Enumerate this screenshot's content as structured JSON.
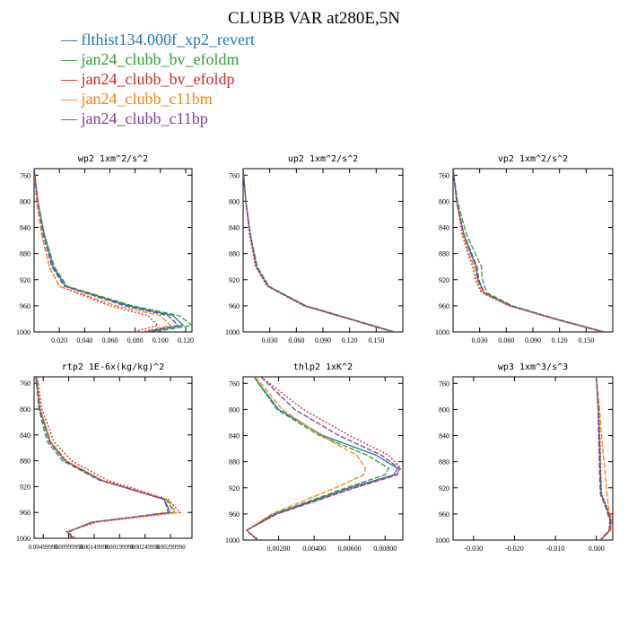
{
  "figure": {
    "title": "CLUBB VAR at280E,5N",
    "legend": [
      {
        "label": "— flthist134.000f_xp2_revert",
        "color": "#1f77b4"
      },
      {
        "label": "— jan24_clubb_bv_efoldm",
        "color": "#2ca02c"
      },
      {
        "label": "— jan24_clubb_bv_efoldp",
        "color": "#d62728"
      },
      {
        "label": "— jan24_clubb_c11bm",
        "color": "#ff7f0e"
      },
      {
        "label": "— jan24_clubb_c11bp",
        "color": "#7b3fa0"
      }
    ]
  },
  "chart_data": [
    {
      "type": "line",
      "title": "wp2  1xm^2/s^2",
      "ylim": [
        1000,
        750
      ],
      "yticks": [
        "760",
        "800",
        "840",
        "880",
        "920",
        "960",
        "1000"
      ],
      "xlim": [
        0,
        0.125
      ],
      "xticks": [
        "0.020",
        "0.040",
        "0.060",
        "0.080",
        "0.100",
        "0.120"
      ],
      "grid": false,
      "y": [
        750,
        800,
        850,
        900,
        930,
        960,
        975,
        990,
        1000
      ],
      "series": [
        {
          "name": "flthist134.000f_xp2_revert",
          "values": [
            0.0,
            0.003,
            0.008,
            0.015,
            0.025,
            0.075,
            0.11,
            0.118,
            0.09
          ]
        },
        {
          "name": "jan24_clubb_bv_efoldm",
          "values": [
            0.0,
            0.003,
            0.008,
            0.016,
            0.026,
            0.078,
            0.115,
            0.125,
            0.095
          ]
        },
        {
          "name": "jan24_clubb_bv_efoldp",
          "values": [
            0.0,
            0.002,
            0.006,
            0.012,
            0.02,
            0.06,
            0.09,
            0.098,
            0.078
          ]
        },
        {
          "name": "jan24_clubb_c11bm",
          "values": [
            0.0,
            0.002,
            0.006,
            0.012,
            0.02,
            0.065,
            0.1,
            0.108,
            0.085
          ]
        },
        {
          "name": "jan24_clubb_c11bp",
          "values": [
            0.0,
            0.003,
            0.007,
            0.014,
            0.024,
            0.072,
            0.106,
            0.114,
            0.088
          ]
        }
      ]
    },
    {
      "type": "line",
      "title": "up2  1xm^2/s^2",
      "ylim": [
        1000,
        750
      ],
      "yticks": [
        "760",
        "800",
        "840",
        "880",
        "920",
        "960",
        "1000"
      ],
      "xlim": [
        0,
        0.18
      ],
      "xticks": [
        "0.030",
        "0.060",
        "0.090",
        "0.120",
        "0.150"
      ],
      "grid": false,
      "y": [
        750,
        800,
        850,
        900,
        930,
        960,
        980,
        1000
      ],
      "series": [
        {
          "name": "flthist134.000f_xp2_revert",
          "values": [
            0.0,
            0.003,
            0.008,
            0.015,
            0.028,
            0.07,
            0.12,
            0.17
          ]
        },
        {
          "name": "jan24_clubb_bv_efoldm",
          "values": [
            0.0,
            0.003,
            0.008,
            0.016,
            0.029,
            0.071,
            0.121,
            0.171
          ]
        },
        {
          "name": "jan24_clubb_bv_efoldp",
          "values": [
            0.0,
            0.003,
            0.007,
            0.014,
            0.027,
            0.068,
            0.118,
            0.168
          ]
        },
        {
          "name": "jan24_clubb_c11bm",
          "values": [
            0.0,
            0.003,
            0.008,
            0.015,
            0.028,
            0.069,
            0.119,
            0.169
          ]
        },
        {
          "name": "jan24_clubb_c11bp",
          "values": [
            0.0,
            0.003,
            0.008,
            0.015,
            0.028,
            0.07,
            0.12,
            0.17
          ]
        }
      ]
    },
    {
      "type": "line",
      "title": "vp2  1xm^2/s^2",
      "ylim": [
        1000,
        750
      ],
      "yticks": [
        "760",
        "800",
        "840",
        "880",
        "920",
        "960",
        "1000"
      ],
      "xlim": [
        0,
        0.18
      ],
      "xticks": [
        "0.030",
        "0.060",
        "0.090",
        "0.120",
        "0.150"
      ],
      "grid": false,
      "y": [
        750,
        800,
        850,
        880,
        900,
        920,
        940,
        960,
        980,
        1000
      ],
      "series": [
        {
          "name": "flthist134.000f_xp2_revert",
          "values": [
            0.0,
            0.004,
            0.012,
            0.02,
            0.026,
            0.028,
            0.035,
            0.065,
            0.115,
            0.17
          ]
        },
        {
          "name": "jan24_clubb_bv_efoldm",
          "values": [
            0.0,
            0.005,
            0.015,
            0.025,
            0.032,
            0.033,
            0.038,
            0.067,
            0.116,
            0.171
          ]
        },
        {
          "name": "jan24_clubb_bv_efoldp",
          "values": [
            0.0,
            0.004,
            0.01,
            0.017,
            0.022,
            0.025,
            0.032,
            0.063,
            0.113,
            0.168
          ]
        },
        {
          "name": "jan24_clubb_c11bm",
          "values": [
            0.0,
            0.004,
            0.011,
            0.018,
            0.024,
            0.027,
            0.033,
            0.064,
            0.114,
            0.169
          ]
        },
        {
          "name": "jan24_clubb_c11bp",
          "values": [
            0.0,
            0.004,
            0.012,
            0.021,
            0.027,
            0.029,
            0.035,
            0.065,
            0.115,
            0.17
          ]
        }
      ]
    },
    {
      "type": "line",
      "title": "rtp2  1E-6x(kg/kg)^2",
      "ylim": [
        1000,
        750
      ],
      "yticks": [
        "760",
        "800",
        "840",
        "880",
        "920",
        "960",
        "1000"
      ],
      "xlim": [
        0,
        0.0004
      ],
      "xticks": [
        "0.00499990",
        "0.00999990",
        "0.00149990",
        "0.00199990",
        "0.00249990",
        "0.00299990"
      ],
      "grid": false,
      "y": [
        750,
        800,
        850,
        880,
        910,
        940,
        960,
        975,
        990,
        1000
      ],
      "series": [
        {
          "name": "flthist134.000f_xp2_revert",
          "values": [
            5e-06,
            1.5e-05,
            4e-05,
            8e-05,
            0.00017,
            0.00033,
            0.000345,
            0.00015,
            8.5e-05,
            0.0001
          ]
        },
        {
          "name": "jan24_clubb_bv_efoldm",
          "values": [
            5e-06,
            1.2e-05,
            3.3e-05,
            7.2e-05,
            0.000165,
            0.000335,
            0.000355,
            0.000145,
            8.5e-05,
            9.5e-05
          ]
        },
        {
          "name": "jan24_clubb_bv_efoldp",
          "values": [
            8e-06,
            2e-05,
            5e-05,
            9.5e-05,
            0.000185,
            0.00034,
            0.00037,
            0.00016,
            8e-05,
            0.000105
          ]
        },
        {
          "name": "jan24_clubb_c11bm",
          "values": [
            6e-06,
            1.6e-05,
            4.2e-05,
            8.2e-05,
            0.000172,
            0.000338,
            0.00036,
            0.00015,
            8.5e-05,
            0.0001
          ]
        },
        {
          "name": "jan24_clubb_c11bp",
          "values": [
            4e-06,
            1.4e-05,
            3.8e-05,
            7.8e-05,
            0.000168,
            0.00033,
            0.00034,
            0.000148,
            8.8e-05,
            9.8e-05
          ]
        }
      ]
    },
    {
      "type": "line",
      "title": "thlp2  1xK^2",
      "ylim": [
        1000,
        750
      ],
      "yticks": [
        "760",
        "800",
        "840",
        "880",
        "920",
        "960",
        "1000"
      ],
      "xlim": [
        0,
        0.009
      ],
      "xticks": [
        "0.00200",
        "0.00400",
        "0.00600",
        "0.00800"
      ],
      "grid": false,
      "y": [
        750,
        800,
        840,
        870,
        890,
        900,
        920,
        960,
        985,
        1000
      ],
      "series": [
        {
          "name": "flthist134.000f_xp2_revert",
          "values": [
            0.0006,
            0.002,
            0.0045,
            0.0075,
            0.0087,
            0.0085,
            0.006,
            0.0018,
            0.0002,
            0.0008
          ]
        },
        {
          "name": "jan24_clubb_bv_efoldm",
          "values": [
            0.0006,
            0.0019,
            0.0043,
            0.007,
            0.0082,
            0.008,
            0.0058,
            0.0017,
            0.0002,
            0.0008
          ]
        },
        {
          "name": "jan24_clubb_bv_efoldp",
          "values": [
            0.001,
            0.0034,
            0.006,
            0.0082,
            0.0089,
            0.0086,
            0.0062,
            0.0019,
            0.0002,
            0.0009
          ]
        },
        {
          "name": "jan24_clubb_c11bm",
          "values": [
            0.0007,
            0.0022,
            0.0044,
            0.0064,
            0.0069,
            0.0068,
            0.0052,
            0.0016,
            0.0002,
            0.0008
          ]
        },
        {
          "name": "jan24_clubb_c11bp",
          "values": [
            0.001,
            0.0029,
            0.0054,
            0.0078,
            0.0088,
            0.0087,
            0.0063,
            0.0019,
            0.0002,
            0.0008
          ]
        }
      ]
    },
    {
      "type": "line",
      "title": "wp3  1xm^3/s^3",
      "ylim": [
        1000,
        750
      ],
      "yticks": [
        "760",
        "800",
        "840",
        "880",
        "920",
        "960",
        "1000"
      ],
      "xlim": [
        -0.035,
        0.004
      ],
      "xticks": [
        "-0.030",
        "-0.020",
        "-0.010",
        "0.000"
      ],
      "grid": false,
      "y": [
        750,
        800,
        850,
        900,
        930,
        950,
        970,
        985,
        1000
      ],
      "series": [
        {
          "name": "flthist134.000f_xp2_revert",
          "values": [
            0.0,
            0.0005,
            0.0008,
            0.001,
            0.0012,
            0.0025,
            0.0035,
            0.0033,
            0.001
          ]
        },
        {
          "name": "jan24_clubb_bv_efoldm",
          "values": [
            0.0,
            0.0005,
            0.0007,
            0.0009,
            0.0011,
            0.0024,
            0.0034,
            0.0032,
            0.001
          ]
        },
        {
          "name": "jan24_clubb_bv_efoldp",
          "values": [
            0.0,
            0.0006,
            0.0009,
            0.0011,
            0.0013,
            0.0026,
            0.0036,
            0.0034,
            0.0011
          ]
        },
        {
          "name": "jan24_clubb_c11bm",
          "values": [
            0.0,
            0.0008,
            0.0014,
            0.0022,
            0.0026,
            0.003,
            0.0038,
            0.0035,
            0.0012
          ]
        },
        {
          "name": "jan24_clubb_c11bp",
          "values": [
            0.0,
            0.0004,
            0.0006,
            0.0008,
            0.001,
            0.0023,
            0.0033,
            0.0031,
            0.0009
          ]
        }
      ]
    }
  ]
}
